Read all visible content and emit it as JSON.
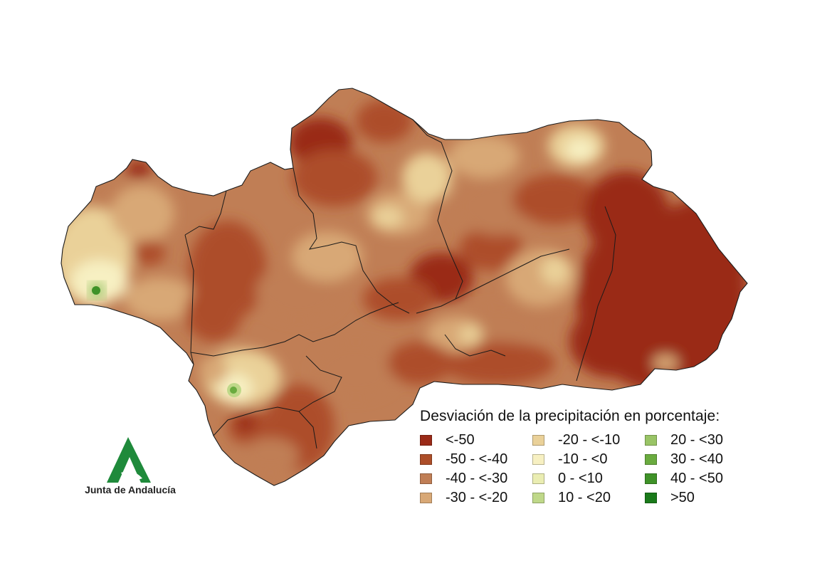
{
  "legend": {
    "title": "Desviación de la precipitación en porcentaje:",
    "items": [
      {
        "label": "<-50",
        "color": "#9a2a17"
      },
      {
        "label": "-50 - <-40",
        "color": "#ad4e29"
      },
      {
        "label": "-40 - <-30",
        "color": "#c07e55"
      },
      {
        "label": "-30 - <-20",
        "color": "#d8a876"
      },
      {
        "label": "-20 - <-10",
        "color": "#ead199"
      },
      {
        "label": "-10 - <0",
        "color": "#f7f0c2"
      },
      {
        "label": "0 - <10",
        "color": "#eaedb2"
      },
      {
        "label": "10 - <20",
        "color": "#bfd889"
      },
      {
        "label": "20 - <30",
        "color": "#99c466"
      },
      {
        "label": "30 - <40",
        "color": "#6aab3f"
      },
      {
        "label": "40 - <50",
        "color": "#3f9228"
      },
      {
        "label": ">50",
        "color": "#1a7a1a"
      }
    ]
  },
  "logo": {
    "text": "Junta de Andalucía",
    "color": "#1f8a3b"
  }
}
